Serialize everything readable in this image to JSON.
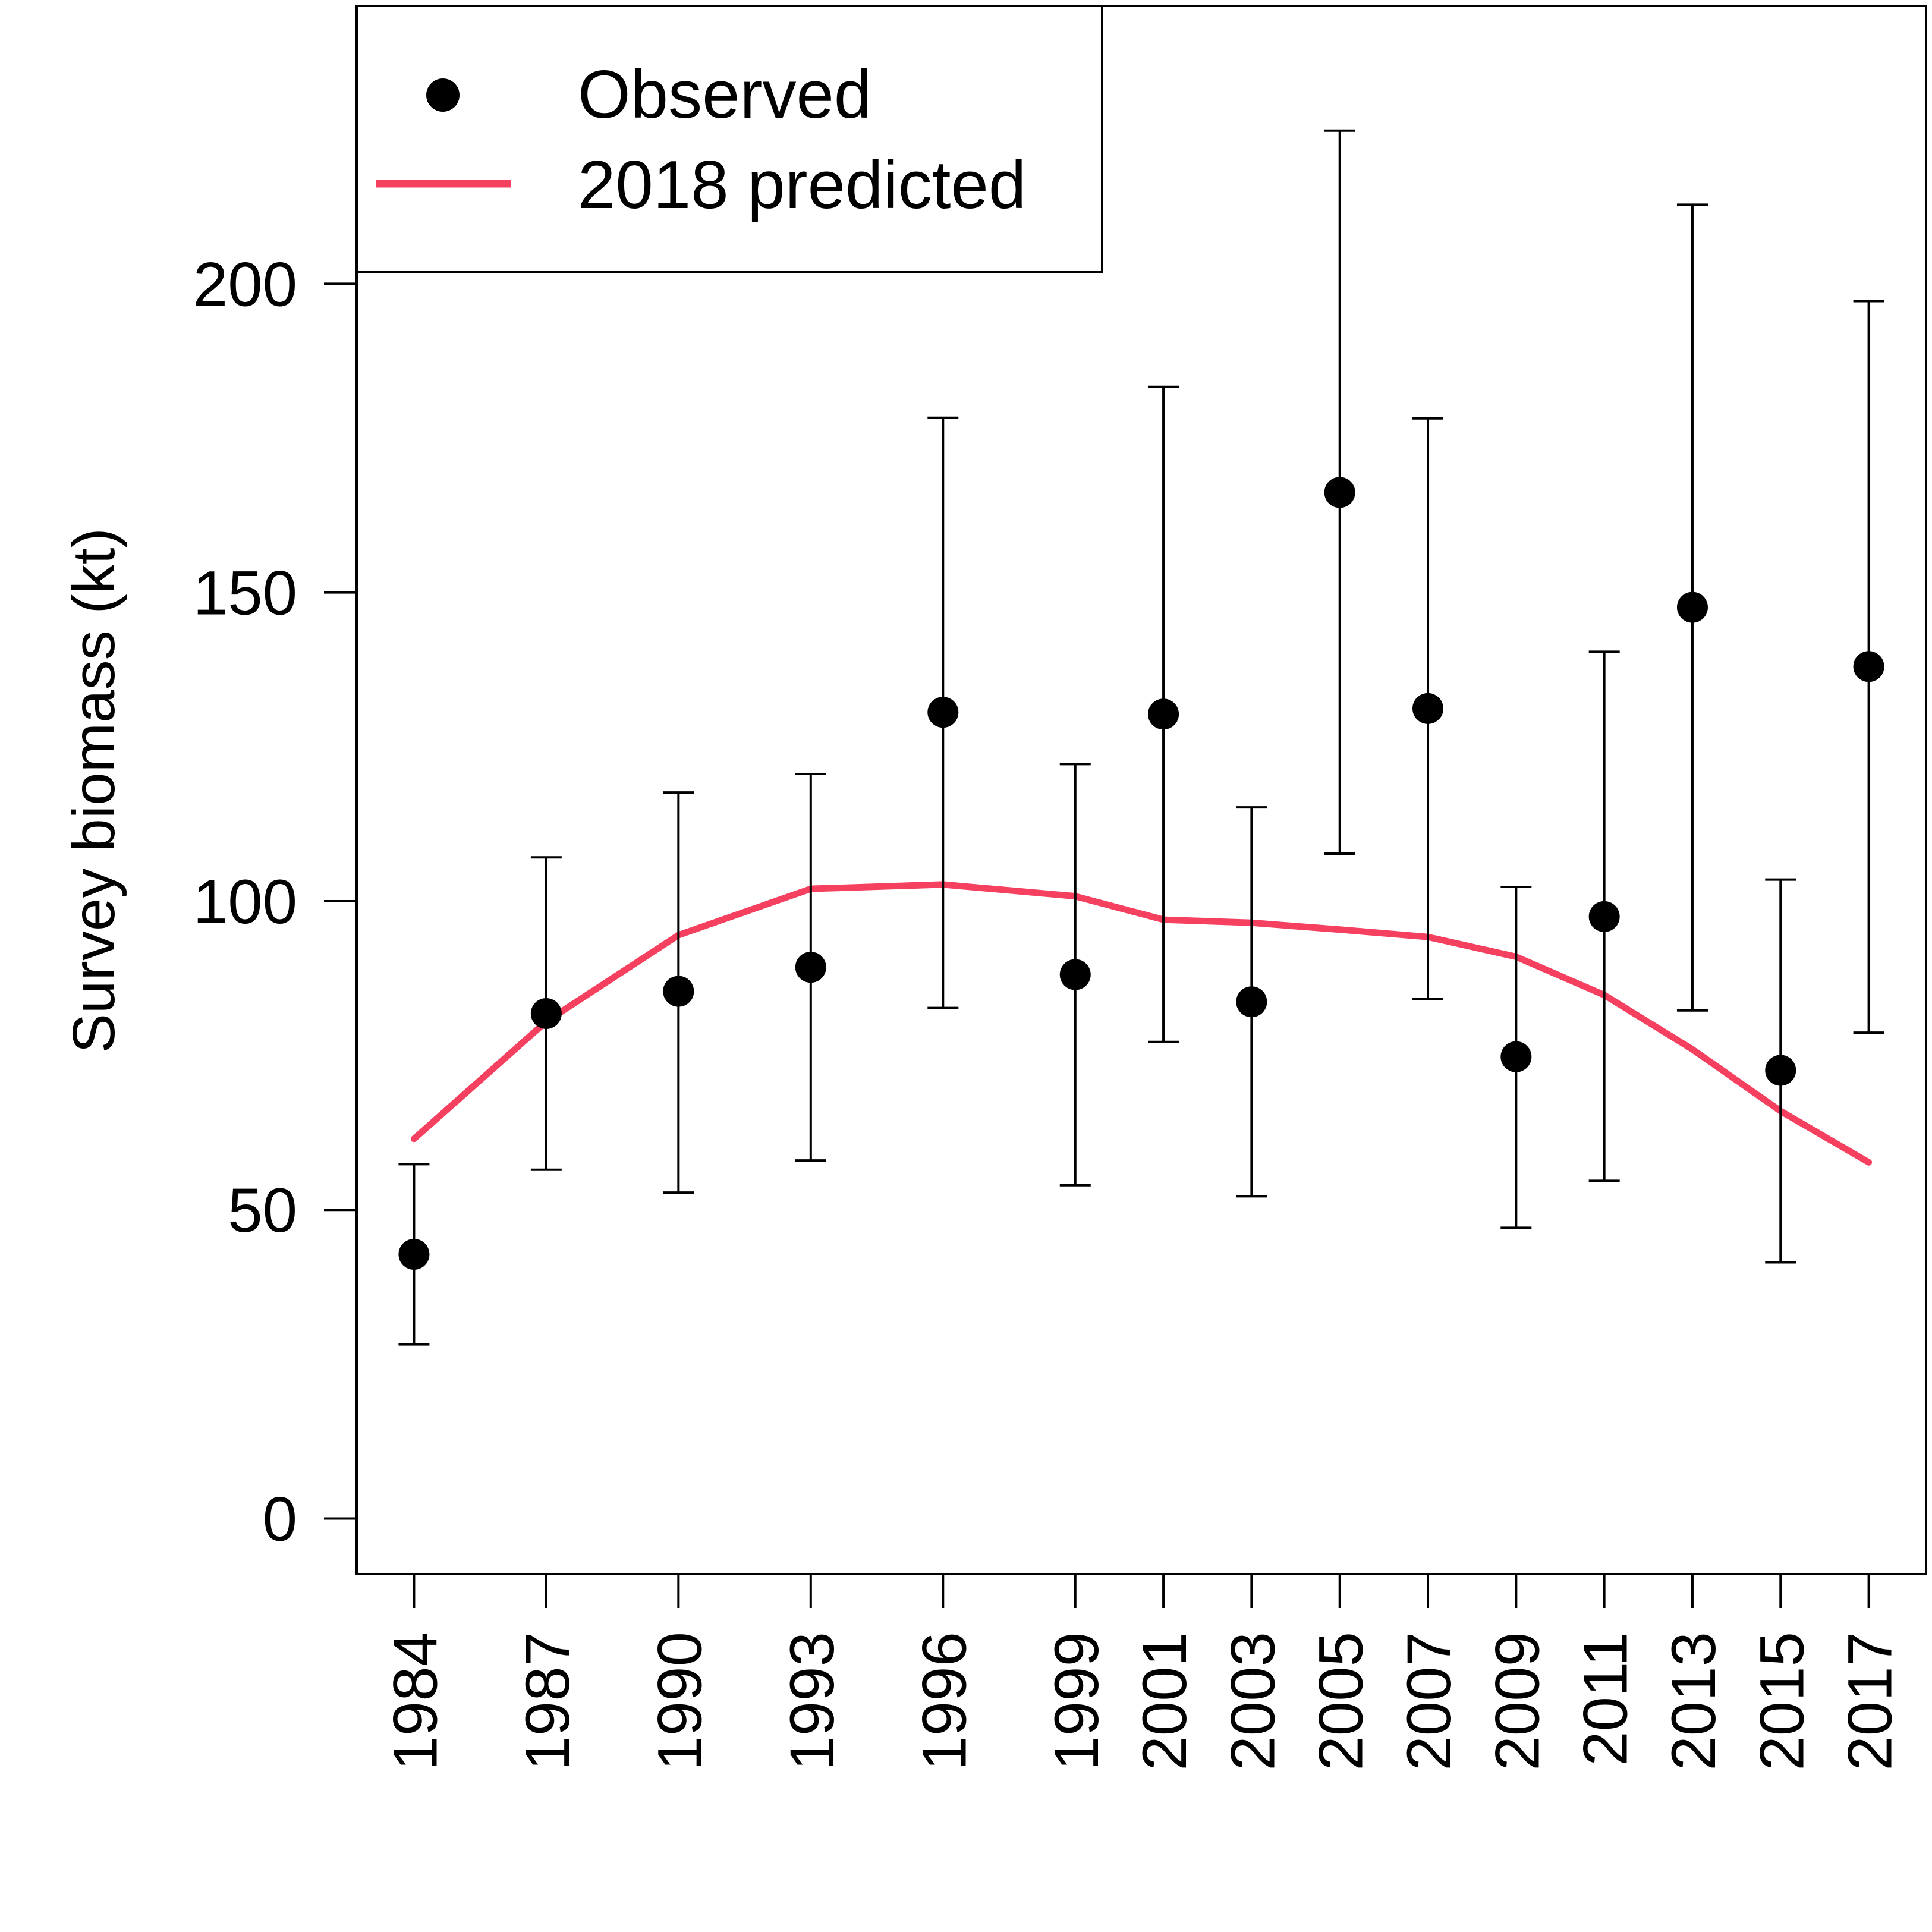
{
  "chart_data": {
    "type": "scatter",
    "title": "",
    "xlabel": "",
    "ylabel": "Survey biomass (kt)",
    "ylim": [
      -9,
      245
    ],
    "yticks": [
      0,
      50,
      100,
      150,
      200
    ],
    "xlim": [
      1982.7,
      2018.3
    ],
    "xticks": [
      1984,
      1987,
      1990,
      1993,
      1996,
      1999,
      2001,
      2003,
      2005,
      2007,
      2009,
      2011,
      2013,
      2015,
      2017
    ],
    "legend": {
      "position": "top-left",
      "entries": [
        "Observed",
        "2018 predicted"
      ]
    },
    "series": [
      {
        "name": "Observed",
        "kind": "points-with-error-bars",
        "color": "#000000",
        "x": [
          1984,
          1987,
          1990,
          1993,
          1996,
          1999,
          2001,
          2003,
          2005,
          2007,
          2009,
          2011,
          2013,
          2015,
          2017
        ],
        "y": [
          42.8,
          81.8,
          85.4,
          89.3,
          130.6,
          88.1,
          130.3,
          83.7,
          166.2,
          131.2,
          74.8,
          97.5,
          147.6,
          72.6,
          138.0
        ],
        "lower": [
          28.2,
          56.5,
          52.8,
          58.0,
          82.7,
          54.0,
          77.2,
          52.2,
          107.7,
          84.2,
          47.1,
          54.7,
          82.3,
          41.5,
          78.7
        ],
        "upper": [
          57.4,
          107.1,
          117.6,
          120.6,
          178.3,
          122.2,
          183.3,
          115.2,
          224.8,
          178.2,
          102.3,
          140.4,
          212.8,
          103.5,
          197.2
        ]
      },
      {
        "name": "2018 predicted",
        "kind": "line",
        "color": "#f5405f",
        "x": [
          1984,
          1987,
          1990,
          1993,
          1996,
          1999,
          2001,
          2003,
          2005,
          2007,
          2009,
          2011,
          2013,
          2015,
          2017
        ],
        "y": [
          61.5,
          80.5,
          94.5,
          102.0,
          102.7,
          100.8,
          97.0,
          96.5,
          95.4,
          94.2,
          91.0,
          84.8,
          76.0,
          66.0,
          57.7
        ]
      }
    ]
  }
}
